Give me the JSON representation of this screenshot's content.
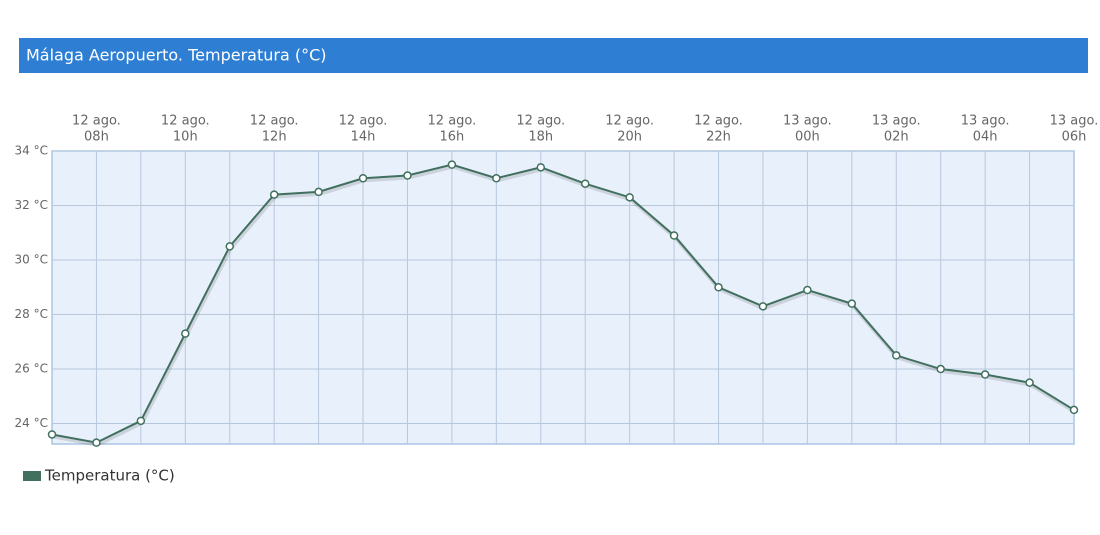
{
  "chart_data": {
    "type": "line",
    "title": "Málaga Aeropuerto. Temperatura (°C)",
    "categories": [
      null,
      [
        "12 ago.",
        "08h"
      ],
      null,
      [
        "12 ago.",
        "10h"
      ],
      null,
      [
        "12 ago.",
        "12h"
      ],
      null,
      [
        "12 ago.",
        "14h"
      ],
      null,
      [
        "12 ago.",
        "16h"
      ],
      null,
      [
        "12 ago.",
        "18h"
      ],
      null,
      [
        "12 ago.",
        "20h"
      ],
      null,
      [
        "12 ago.",
        "22h"
      ],
      null,
      [
        "13 ago.",
        "00h"
      ],
      null,
      [
        "13 ago.",
        "02h"
      ],
      null,
      [
        "13 ago.",
        "04h"
      ],
      null,
      [
        "13 ago.",
        "06h"
      ]
    ],
    "series": [
      {
        "name": "Temperatura (°C)",
        "color": "#41705f",
        "values": [
          23.6,
          23.3,
          24.1,
          27.3,
          30.5,
          32.4,
          32.5,
          33.0,
          33.1,
          33.5,
          33.0,
          33.4,
          32.8,
          32.3,
          30.9,
          29.0,
          28.3,
          28.9,
          28.4,
          26.5,
          26.0,
          25.8,
          25.5,
          24.5
        ]
      }
    ],
    "ylim": [
      23.25,
      34
    ],
    "yticks": [
      {
        "value": 24,
        "label": "24 °C"
      },
      {
        "value": 26,
        "label": "26 °C"
      },
      {
        "value": 28,
        "label": "28 °C"
      },
      {
        "value": 30,
        "label": "30 °C"
      },
      {
        "value": 32,
        "label": "32 °C"
      },
      {
        "value": 34,
        "label": "34 °C"
      }
    ],
    "grid": true
  }
}
